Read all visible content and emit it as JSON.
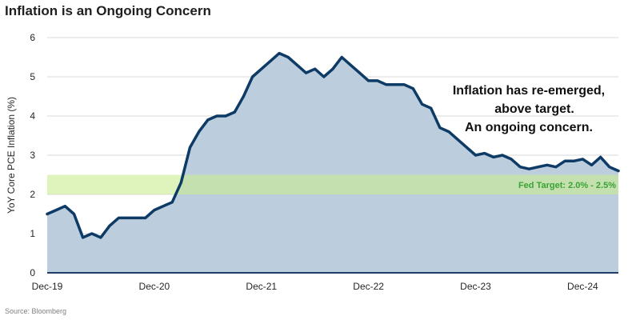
{
  "title": "Inflation is an Ongoing Concern",
  "source": "Source: Bloomberg",
  "colors": {
    "line": "#0d3b66",
    "area": "#bccddd",
    "band": "#c8ec8f",
    "band_label": "#3aa336",
    "grid": "#d9d9d9",
    "axis": "#1f3f66"
  },
  "chart_data": {
    "type": "area",
    "title": "Inflation is an Ongoing Concern",
    "xlabel": "",
    "ylabel": "YoY Core PCE Inflation (%)",
    "ylim": [
      0,
      6
    ],
    "yticks": [
      0,
      1,
      2,
      3,
      4,
      5,
      6
    ],
    "xlim": [
      0,
      64
    ],
    "xticks": [
      {
        "x": 0,
        "label": "Dec-19"
      },
      {
        "x": 12,
        "label": "Dec-20"
      },
      {
        "x": 24,
        "label": "Dec-21"
      },
      {
        "x": 36,
        "label": "Dec-22"
      },
      {
        "x": 48,
        "label": "Dec-23"
      },
      {
        "x": 60,
        "label": "Dec-24"
      }
    ],
    "grid": true,
    "series": [
      {
        "values": [
          1.5,
          1.6,
          1.7,
          1.5,
          0.9,
          1.0,
          0.9,
          1.2,
          1.4,
          1.4,
          1.4,
          1.4,
          1.6,
          1.7,
          1.8,
          2.3,
          3.2,
          3.6,
          3.9,
          4.0,
          4.0,
          4.1,
          4.5,
          5.0,
          5.2,
          5.4,
          5.6,
          5.5,
          5.3,
          5.1,
          5.2,
          5.0,
          5.2,
          5.5,
          5.3,
          5.1,
          4.9,
          4.9,
          4.8,
          4.8,
          4.8,
          4.7,
          4.3,
          4.2,
          3.7,
          3.6,
          3.4,
          3.2,
          3.0,
          3.05,
          2.95,
          3.0,
          2.9,
          2.7,
          2.65,
          2.7,
          2.75,
          2.7,
          2.85,
          2.85,
          2.9,
          2.75,
          2.95,
          2.7,
          2.6
        ]
      }
    ],
    "bands": [
      {
        "from": 2.0,
        "to": 2.5,
        "label": "Fed Target: 2.0% - 2.5%"
      }
    ],
    "annotations": [
      "Inflation has re-emerged,",
      "above target.",
      "An ongoing concern."
    ]
  }
}
